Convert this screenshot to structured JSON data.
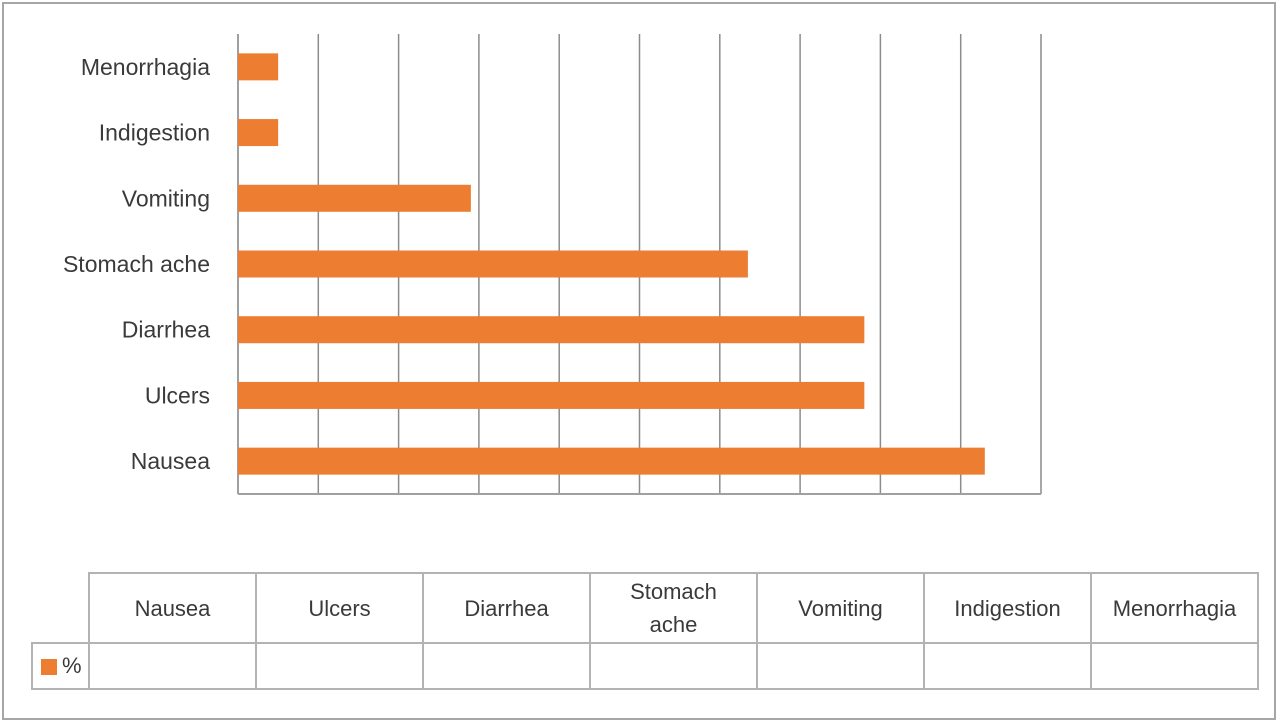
{
  "chart_data": {
    "type": "bar",
    "orientation": "horizontal",
    "categories": [
      "Nausea",
      "Ulcers",
      "Diarrhea",
      "Stomach ache",
      "Vomiting",
      "Indigestion",
      "Menorrhagia"
    ],
    "table_headers": [
      "Nausea",
      "Ulcers",
      "Diarrhea",
      "Stomach\nache",
      "Vomiting",
      "Indigestion",
      "Menorrhagia"
    ],
    "series": [
      {
        "name": "%",
        "color": "#ed7d31",
        "values": [
          9.3,
          7.8,
          7.8,
          6.35,
          2.9,
          0.5,
          0.5
        ]
      }
    ],
    "xlim": [
      0,
      10
    ],
    "grid": true,
    "data_table": true
  }
}
